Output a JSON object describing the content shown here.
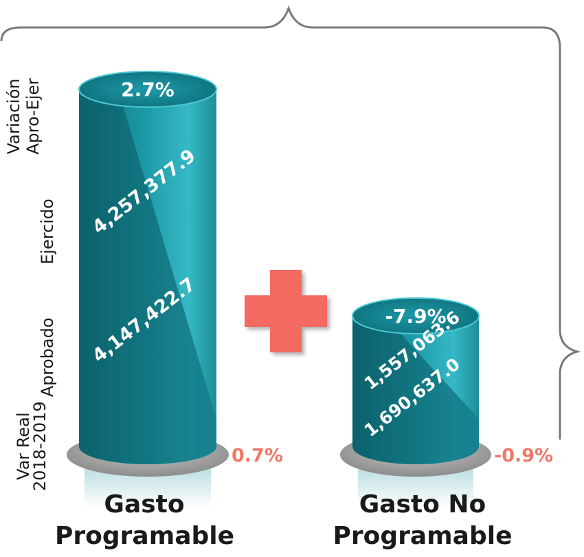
{
  "chart_data": {
    "type": "bar",
    "categories": [
      "Gasto Programable",
      "Gasto No Programable"
    ],
    "category_lines": [
      [
        "Gasto",
        "Programable"
      ],
      [
        "Gasto No",
        "Programable"
      ]
    ],
    "row_labels": {
      "variacion": [
        "Variación",
        "Apro-Ejer"
      ],
      "ejercido": "Ejercido",
      "aprobado": "Aprobado",
      "var_real": [
        "Var Real",
        "2018-2019"
      ]
    },
    "series": [
      {
        "name": "Aprobado",
        "values": [
          4147422.7,
          1690637.0
        ],
        "labels": [
          "4,147,422.7",
          "1,690,637.0"
        ]
      },
      {
        "name": "Ejercido",
        "values": [
          4257377.9,
          1557063.6
        ],
        "labels": [
          "4,257,377.9",
          "1,557,063.6"
        ]
      }
    ],
    "variacion_apro_ejer": [
      "2.7%",
      "-7.9%"
    ],
    "var_real_2018_2019": [
      "0.7%",
      "-0.9%"
    ],
    "colors": {
      "cylinder": "#1a8f9c",
      "cylinder_light": "#3fc1cf",
      "plus": "#f26b60",
      "var_real": "#f07866"
    }
  }
}
